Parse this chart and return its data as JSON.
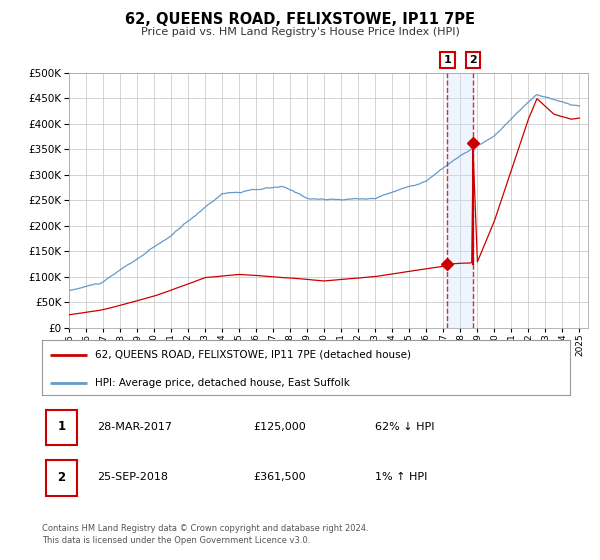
{
  "title": "62, QUEENS ROAD, FELIXSTOWE, IP11 7PE",
  "subtitle": "Price paid vs. HM Land Registry's House Price Index (HPI)",
  "ylim": [
    0,
    500000
  ],
  "yticks": [
    0,
    50000,
    100000,
    150000,
    200000,
    250000,
    300000,
    350000,
    400000,
    450000,
    500000
  ],
  "xlim_start": 1995.0,
  "xlim_end": 2025.5,
  "event1_x": 2017.24,
  "event1_y": 125000,
  "event2_x": 2018.73,
  "event2_y": 361500,
  "event1_label": "1",
  "event2_label": "2",
  "event1_date": "28-MAR-2017",
  "event1_price": "£125,000",
  "event1_hpi": "62% ↓ HPI",
  "event2_date": "25-SEP-2018",
  "event2_price": "£361,500",
  "event2_hpi": "1% ↑ HPI",
  "legend1_label": "62, QUEENS ROAD, FELIXSTOWE, IP11 7PE (detached house)",
  "legend2_label": "HPI: Average price, detached house, East Suffolk",
  "hpi_color": "#6699cc",
  "price_color": "#cc0000",
  "marker_color": "#cc0000",
  "event_box_color": "#cc0000",
  "shade_color": "#cce0ff",
  "grid_color": "#cccccc",
  "background_color": "#ffffff",
  "footnote_line1": "Contains HM Land Registry data © Crown copyright and database right 2024.",
  "footnote_line2": "This data is licensed under the Open Government Licence v3.0."
}
